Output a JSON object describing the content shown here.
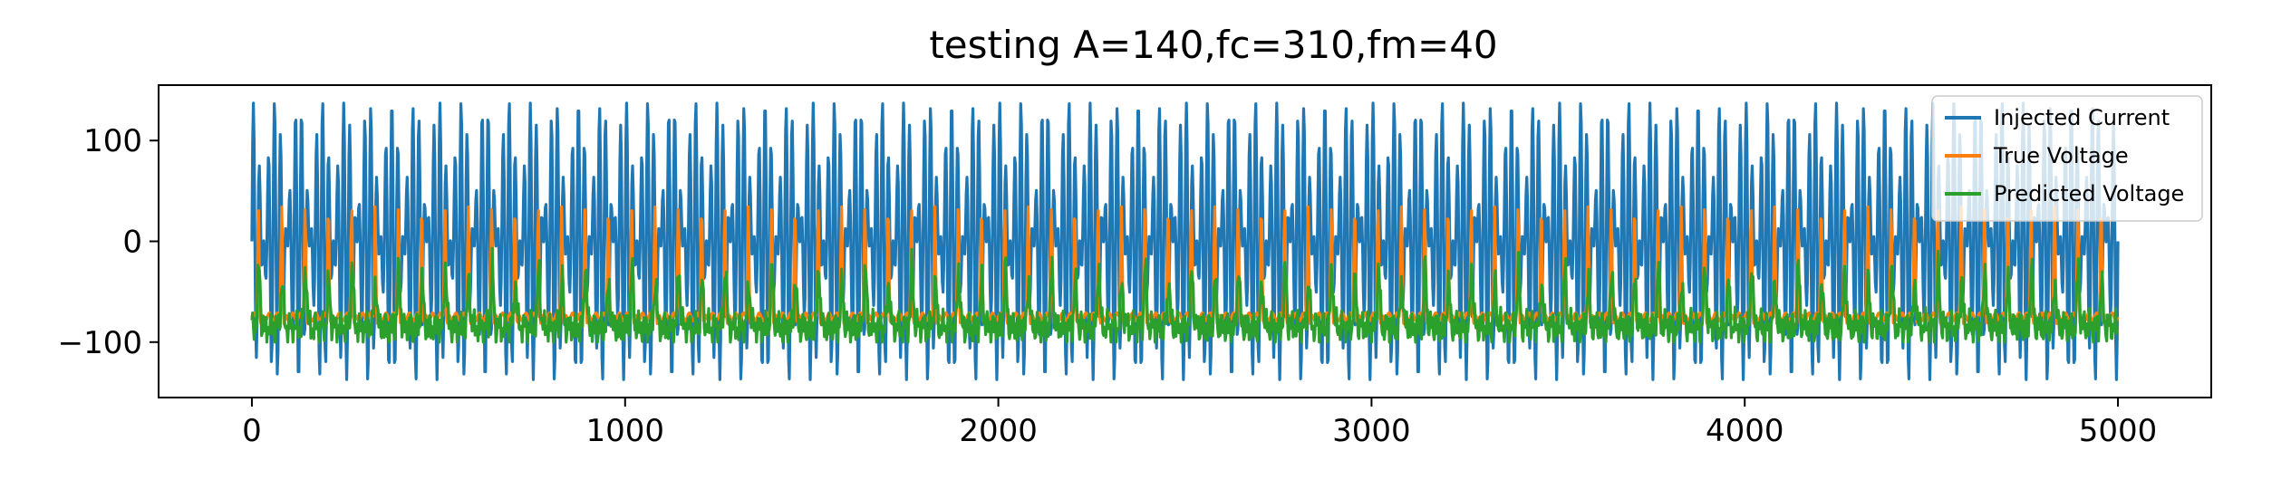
{
  "chart_data": {
    "type": "line",
    "title": "testing A=140,fc=310,fm=40",
    "xlabel": "",
    "ylabel": "",
    "xlim": [
      -250,
      5250
    ],
    "ylim": [
      -155,
      155
    ],
    "x_ticks": [
      0,
      1000,
      2000,
      3000,
      4000,
      5000
    ],
    "x_tick_labels": [
      "0",
      "1000",
      "2000",
      "3000",
      "4000",
      "5000"
    ],
    "y_ticks": [
      -100,
      0,
      100
    ],
    "y_tick_labels": [
      "−100",
      "0",
      "100"
    ],
    "grid": false,
    "legend_position": "top-right",
    "x_range": [
      0,
      5000
    ],
    "series": [
      {
        "name": "Injected Current",
        "color": "#1f77b4",
        "signal": "A*sin(2*pi*fc*t)*cos(2*pi*fm*t), sampled over x = 0..5000",
        "amplitude": 140,
        "peak_max": 140,
        "peak_min": -140,
        "envelope_periods": 40,
        "carrier_cycles_per_envelope": 7.75
      },
      {
        "name": "True Voltage",
        "color": "#ff7f0e",
        "baseline": -75,
        "spike_peak": 40,
        "spike_min": -65,
        "pattern": "two spikes per injected-current burst"
      },
      {
        "name": "Predicted Voltage",
        "color": "#2ca02c",
        "baseline": -85,
        "range": [
          -100,
          15
        ],
        "pattern": "noisy oscillation near baseline with small peaks per burst"
      }
    ]
  }
}
